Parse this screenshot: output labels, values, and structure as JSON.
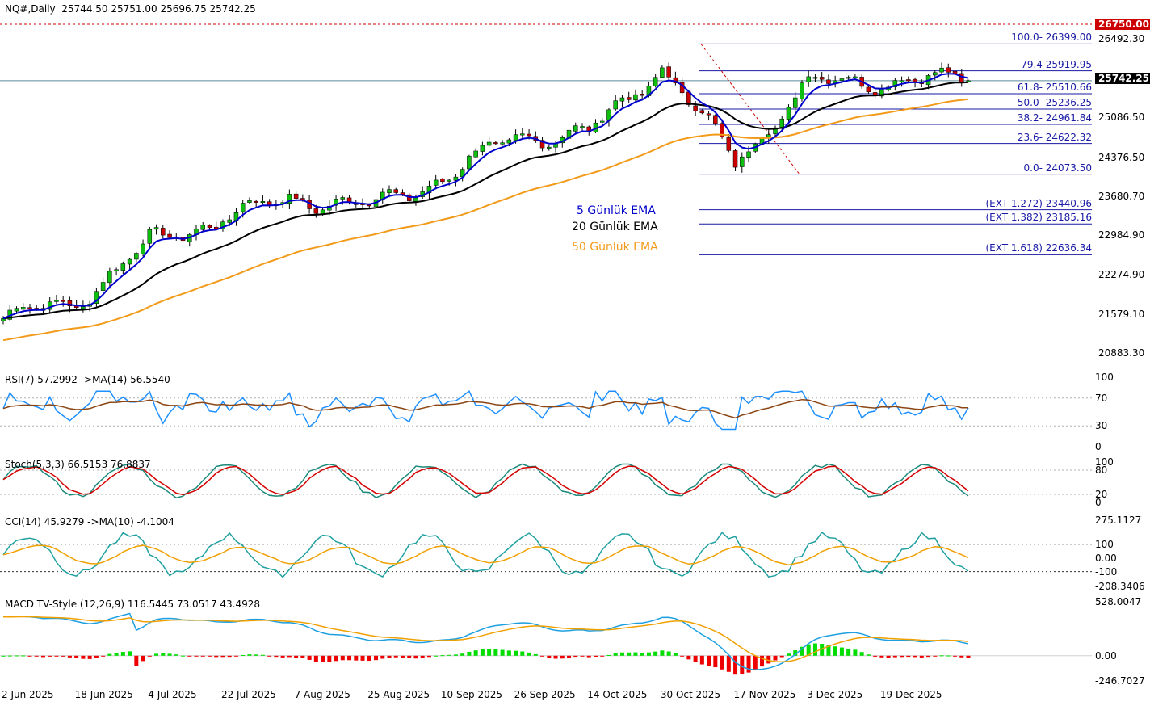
{
  "header": {
    "symbol": "NQ#,Daily",
    "ohlc": "25744.50 25751.00 25696.75 25742.25"
  },
  "colors": {
    "ema5": "#0000cc",
    "ema20": "#000000",
    "ema50": "#f29b1b",
    "bull": "#0fbf0f",
    "bear": "#cc0000",
    "fib": "#1a1aa6",
    "rsi": "#1e90ff",
    "rsi_ma": "#8b4513",
    "stoch_k": "#1a8a7a",
    "stoch_d": "#d40000",
    "cci": "#20a0a0",
    "cci_ma": "#f0a000",
    "macd": "#1ea0e0",
    "macd_signal": "#f0a000",
    "hist_pos": "#00dd00",
    "hist_neg": "#ee0000"
  },
  "price_axis": [
    "26492.30",
    "25086.50",
    "24376.50",
    "23680.70",
    "22984.90",
    "22274.90",
    "21579.10",
    "20883.30"
  ],
  "price_tags": {
    "top": "26750.00",
    "current": "25742.25"
  },
  "fib_levels": [
    {
      "label": "100.0- 26399.00",
      "price": 26399
    },
    {
      "label": "79.4 25919.95",
      "price": 25919.95
    },
    {
      "label": "61.8- 25510.66",
      "price": 25510.66
    },
    {
      "label": "50.0- 25236.25",
      "price": 25236.25
    },
    {
      "label": "38.2- 24961.84",
      "price": 24961.84
    },
    {
      "label": "23.6- 24622.32",
      "price": 24622.32
    },
    {
      "label": "0.0- 24073.50",
      "price": 24073.5
    },
    {
      "label": "(EXT 1.272)  23440.96",
      "price": 23440.96
    },
    {
      "label": "(EXT 1.382)  23185.16",
      "price": 23185.16
    },
    {
      "label": "(EXT 1.618)  22636.34",
      "price": 22636.34
    }
  ],
  "legend": {
    "ema5": "5 Günlük EMA",
    "ema20": "20 Günlük EMA",
    "ema50": "50 Günlük EMA"
  },
  "rsi": {
    "title": "RSI(7) 57.2992  ->MA(14) 56.5540",
    "axis": [
      "100",
      "70",
      "30",
      "0"
    ]
  },
  "stoch": {
    "title": "Stoch(5,3,3) 66.5153 76.8837",
    "axis": [
      "100",
      "80",
      "20",
      "0"
    ]
  },
  "cci": {
    "title": "CCI(14) 45.9279  ->MA(10) -4.1004",
    "axis": [
      "275.1127",
      "100",
      "0.00",
      "-100",
      "-208.3406"
    ]
  },
  "macd": {
    "title": "MACD TV-Style (12,26,9) 116.5445 73.0517 43.4928",
    "axis": [
      "528.0047",
      "0.00",
      "-246.7027"
    ]
  },
  "dates": [
    "2 Jun 2025",
    "18 Jun 2025",
    "4 Jul 2025",
    "22 Jul 2025",
    "7 Aug 2025",
    "25 Aug 2025",
    "10 Sep 2025",
    "26 Sep 2025",
    "14 Oct 2025",
    "30 Oct 2025",
    "17 Nov 2025",
    "3 Dec 2025",
    "19 Dec 2025"
  ],
  "chart_data": {
    "type": "candlestick",
    "title": "NQ#,Daily",
    "ylim": [
      20800,
      26750
    ],
    "close_keypoints": [
      {
        "date": "2 Jun 2025",
        "close": 21500
      },
      {
        "date": "18 Jun 2025",
        "close": 21800
      },
      {
        "date": "4 Jul 2025",
        "close": 22850
      },
      {
        "date": "22 Jul 2025",
        "close": 23300
      },
      {
        "date": "7 Aug 2025",
        "close": 23650
      },
      {
        "date": "25 Aug 2025",
        "close": 23500
      },
      {
        "date": "10 Sep 2025",
        "close": 24000
      },
      {
        "date": "26 Sep 2025",
        "close": 24750
      },
      {
        "date": "14 Oct 2025",
        "close": 24800
      },
      {
        "date": "30 Oct 2025",
        "close": 26000
      },
      {
        "date": "17 Nov 2025",
        "close": 24300
      },
      {
        "date": "3 Dec 2025",
        "close": 25700
      },
      {
        "date": "19 Dec 2025",
        "close": 25742.25
      }
    ],
    "series": [
      {
        "name": "5 Günlük EMA"
      },
      {
        "name": "20 Günlük EMA"
      },
      {
        "name": "50 Günlük EMA"
      }
    ]
  }
}
